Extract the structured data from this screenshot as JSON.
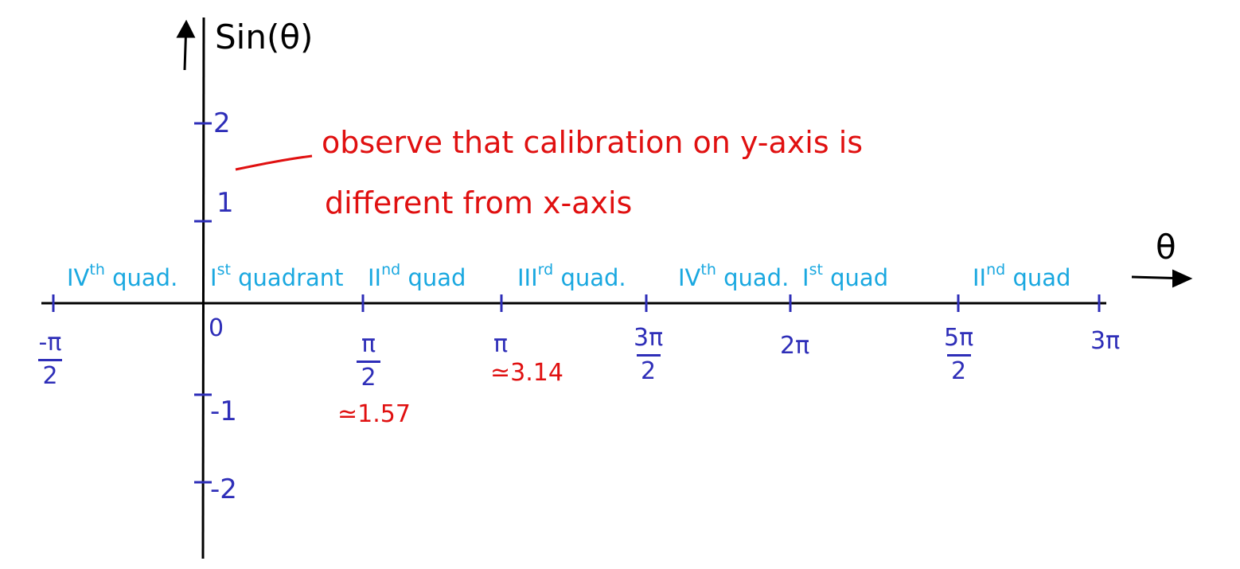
{
  "axes": {
    "y_label": "Sin(θ)",
    "x_label": "θ"
  },
  "y_ticks": [
    {
      "value": 2,
      "label": "2"
    },
    {
      "value": 1,
      "label": "1"
    },
    {
      "value": -1,
      "label": "-1"
    },
    {
      "value": -2,
      "label": "-2"
    }
  ],
  "x_ticks": [
    {
      "value": "-π/2",
      "num": "-π",
      "den": "2"
    },
    {
      "value": "0",
      "label": "0"
    },
    {
      "value": "π/2",
      "num": "π",
      "den": "2",
      "approx": "≃1.57"
    },
    {
      "value": "π",
      "label": "π",
      "approx": "≃3.14"
    },
    {
      "value": "3π/2",
      "num": "3π",
      "den": "2"
    },
    {
      "value": "2π",
      "label": "2π"
    },
    {
      "value": "5π/2",
      "num": "5π",
      "den": "2"
    },
    {
      "value": "3π",
      "label": "3π"
    }
  ],
  "quadrants": [
    {
      "numeral": "IV",
      "sup": "th",
      "word": "quad."
    },
    {
      "numeral": "I",
      "sup": "st",
      "word": "quadrant"
    },
    {
      "numeral": "II",
      "sup": "nd",
      "word": "quad"
    },
    {
      "numeral": "III",
      "sup": "rd",
      "word": "quad."
    },
    {
      "numeral": "IV",
      "sup": "th",
      "word": "quad."
    },
    {
      "numeral": "I",
      "sup": "st",
      "word": "quad"
    },
    {
      "numeral": "II",
      "sup": "nd",
      "word": "quad"
    }
  ],
  "annotation": {
    "line1": "observe that calibration on y-axis is",
    "line2": "different from x-axis"
  },
  "colors": {
    "axis": "#000000",
    "ticks": "#2e2eb8",
    "quadrant_labels": "#1aa8e0",
    "annotation": "#e01010"
  }
}
